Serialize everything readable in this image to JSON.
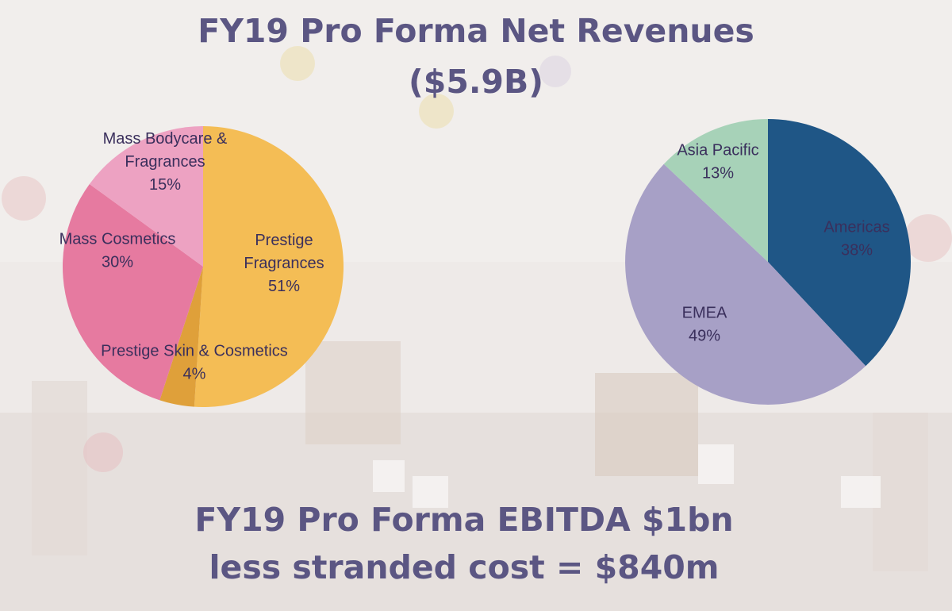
{
  "title": {
    "line1": "FY19 Pro Forma Net Revenues",
    "line2": "($5.9B)"
  },
  "footer": {
    "line1": "FY19 Pro Forma EBITDA $1bn",
    "line2": "less stranded cost = $840m"
  },
  "colors": {
    "text": "#5b5683",
    "label": "#3a2f5c"
  },
  "chart_data": [
    {
      "type": "pie",
      "categories": [
        "Prestige Fragrances",
        "Prestige Skin & Cosmetics",
        "Mass Cosmetics",
        "Mass Bodycare & Fragrances"
      ],
      "values": [
        51,
        4,
        30,
        15
      ],
      "value_labels": [
        "51%",
        "4%",
        "30%",
        "15%"
      ],
      "label_lines": [
        [
          "Prestige",
          "Fragrances"
        ],
        [
          "Prestige Skin & Cosmetics"
        ],
        [
          "Mass Cosmetics"
        ],
        [
          "Mass Bodycare &",
          "Fragrances"
        ]
      ],
      "colors": [
        "#f4bd55",
        "#dfa03a",
        "#e67aa0",
        "#eda2c2"
      ],
      "start": "12 o'clock",
      "direction": "clockwise"
    },
    {
      "type": "pie",
      "categories": [
        "Americas",
        "EMEA",
        "Asia Pacific"
      ],
      "values": [
        38,
        49,
        13
      ],
      "value_labels": [
        "38%",
        "49%",
        "13%"
      ],
      "label_lines": [
        [
          "Americas"
        ],
        [
          "EMEA"
        ],
        [
          "Asia Pacific"
        ]
      ],
      "colors": [
        "#1f5686",
        "#a7a0c6",
        "#a7d2b8"
      ],
      "start": "12 o'clock",
      "direction": "clockwise"
    }
  ]
}
